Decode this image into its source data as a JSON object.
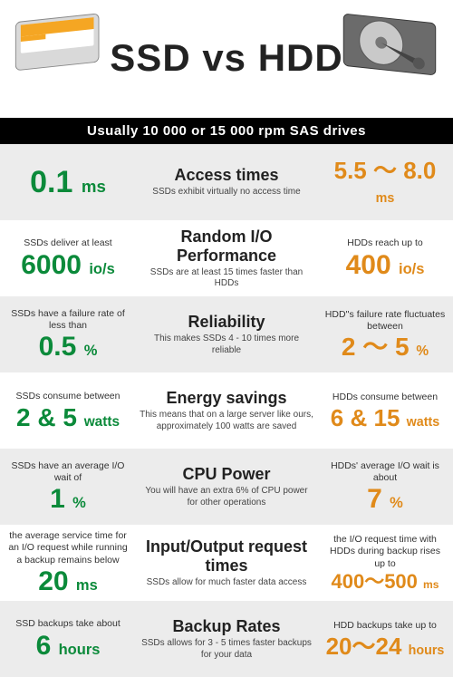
{
  "header": {
    "title": "SSD vs HDD",
    "subtitle": "Usually 10 000 or 15 000 rpm SAS drives"
  },
  "colors": {
    "ssd": "#0b8a3a",
    "hdd": "#e08a1a",
    "bar_bg": "#000000",
    "bar_text": "#ffffff",
    "row_alt_bg": "#ececec"
  },
  "rows": [
    {
      "alt": true,
      "ssd_lead": "",
      "ssd_value": "0.1",
      "ssd_unit": "ms",
      "ssd_fs": "fs-34",
      "cat_title": "Access times",
      "cat_desc": "SSDs exhibit virtually no access time",
      "hdd_lead": "",
      "hdd_value": "5.5 ～ 8.0",
      "hdd_unit": "ms",
      "hdd_fs": "fs-26"
    },
    {
      "alt": false,
      "ssd_lead": "SSDs deliver at least",
      "ssd_value": "6000",
      "ssd_unit": "io/s",
      "ssd_fs": "fs-30",
      "cat_title": "Random I/O Performance",
      "cat_desc": "SSDs are at least 15 times faster than HDDs",
      "hdd_lead": "HDDs reach up to",
      "hdd_value": "400",
      "hdd_unit": "io/s",
      "hdd_fs": "fs-30"
    },
    {
      "alt": true,
      "ssd_lead": "SSDs have a failure rate of less than",
      "ssd_value": "0.5",
      "ssd_unit": "%",
      "ssd_fs": "fs-30",
      "cat_title": "Reliability",
      "cat_desc": "This makes SSDs 4 - 10 times more reliable",
      "hdd_lead": "HDD''s failure rate fluctuates between",
      "hdd_value": "2 ～ 5",
      "hdd_unit": "%",
      "hdd_fs": "fs-28"
    },
    {
      "alt": false,
      "ssd_lead": "SSDs consume between",
      "ssd_value": "2 & 5",
      "ssd_unit": "watts",
      "ssd_fs": "fs-28",
      "cat_title": "Energy savings",
      "cat_desc": "This means that on a large server like ours, approximately 100 watts are saved",
      "hdd_lead": "HDDs consume between",
      "hdd_value": "6 & 15",
      "hdd_unit": "watts",
      "hdd_fs": "fs-26"
    },
    {
      "alt": true,
      "ssd_lead": "SSDs have an average I/O wait of",
      "ssd_value": "1",
      "ssd_unit": "%",
      "ssd_fs": "fs-30",
      "cat_title": "CPU Power",
      "cat_desc": "You will have an extra 6% of CPU power for other operations",
      "hdd_lead": "HDDs' average I/O wait is about",
      "hdd_value": "7",
      "hdd_unit": "%",
      "hdd_fs": "fs-30"
    },
    {
      "alt": false,
      "ssd_lead": "the average service time for an I/O request while running a backup remains below",
      "ssd_value": "20",
      "ssd_unit": "ms",
      "ssd_fs": "fs-30",
      "cat_title": "Input/Output request times",
      "cat_desc": "SSDs allow for much faster data access",
      "hdd_lead": "the I/O request time with HDDs  during backup rises up to",
      "hdd_value": "400～500",
      "hdd_unit": "ms",
      "hdd_fs": "fs-22"
    },
    {
      "alt": true,
      "ssd_lead": "SSD backups take about",
      "ssd_value": "6",
      "ssd_unit": "hours",
      "ssd_fs": "fs-30",
      "cat_title": "Backup Rates",
      "cat_desc": "SSDs allows for 3 - 5 times faster backups for your data",
      "hdd_lead": "HDD backups take up to",
      "hdd_value": "20～24",
      "hdd_unit": "hours",
      "hdd_fs": "fs-26"
    }
  ]
}
